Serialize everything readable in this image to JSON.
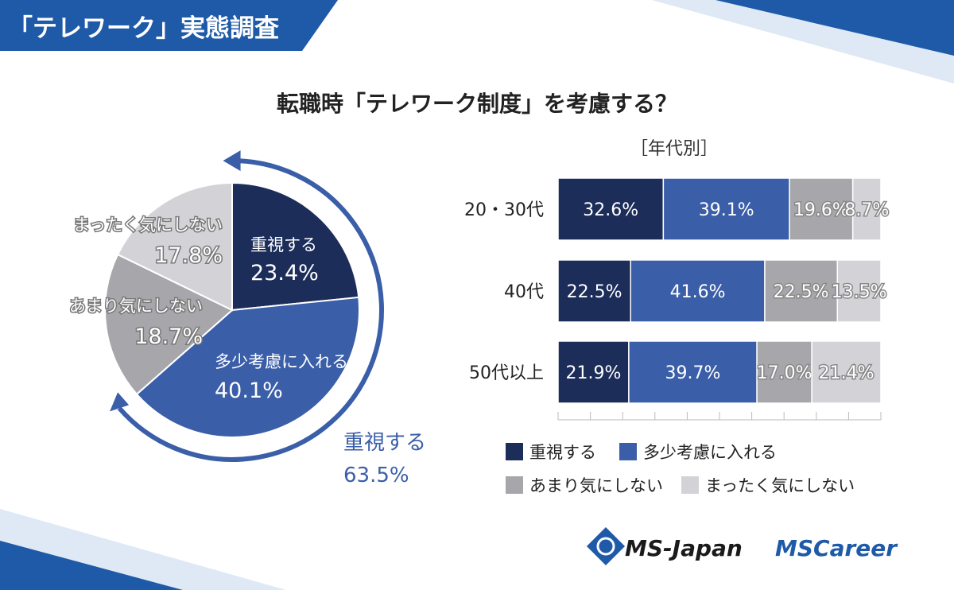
{
  "header": {
    "survey_title": "「テレワーク」実態調査"
  },
  "question": "転職時「テレワーク制度」を考慮する？",
  "bar_section_label": "［年代別］",
  "colors": {
    "very": "#1c2d5a",
    "somewhat": "#3a5ea8",
    "not_much": "#a7a7ab",
    "not_at_all": "#d3d3d7",
    "brand_blue": "#1e5aa8",
    "arc": "#3a5ea8"
  },
  "chart_data": [
    {
      "type": "pie",
      "title": "転職時「テレワーク制度」を考慮する？",
      "slices": [
        {
          "label": "重視する",
          "value": 23.4,
          "display": "23.4%",
          "color_key": "very"
        },
        {
          "label": "多少考慮に入れる",
          "value": 40.1,
          "display": "40.1%",
          "color_key": "somewhat"
        },
        {
          "label": "あまり気にしない",
          "value": 18.7,
          "display": "18.7%",
          "color_key": "not_much"
        },
        {
          "label": "まったく気にしない",
          "value": 17.8,
          "display": "17.8%",
          "color_key": "not_at_all"
        }
      ],
      "annotation": {
        "label": "重視する",
        "value": "63.5%"
      }
    },
    {
      "type": "bar",
      "orientation": "horizontal",
      "stacked": true,
      "title": "［年代別］",
      "categories": [
        "20・30代",
        "40代",
        "50代以上"
      ],
      "series": [
        {
          "name": "重視する",
          "color_key": "very",
          "values": [
            32.6,
            22.5,
            21.9
          ],
          "labels": [
            "32.6%",
            "22.5%",
            "21.9%"
          ]
        },
        {
          "name": "多少考慮に入れる",
          "color_key": "somewhat",
          "values": [
            39.1,
            41.6,
            39.7
          ],
          "labels": [
            "39.1%",
            "41.6%",
            "39.7%"
          ]
        },
        {
          "name": "あまり気にしない",
          "color_key": "not_much",
          "values": [
            19.6,
            22.5,
            17.0
          ],
          "labels": [
            "19.6%",
            "22.5%",
            "17.0%"
          ]
        },
        {
          "name": "まったく気にしない",
          "color_key": "not_at_all",
          "values": [
            8.7,
            13.5,
            21.4
          ],
          "labels": [
            "8.7%",
            "13.5%",
            "21.4%"
          ]
        }
      ],
      "xlim": [
        0,
        100
      ],
      "legend": [
        "重視する",
        "多少考慮に入れる",
        "あまり気にしない",
        "まったく気にしない"
      ],
      "legend_position": "bottom"
    }
  ],
  "logos": {
    "ms_japan": "MS-Japan",
    "ms_career_prefix": "MS",
    "ms_career_suffix": "Career"
  }
}
